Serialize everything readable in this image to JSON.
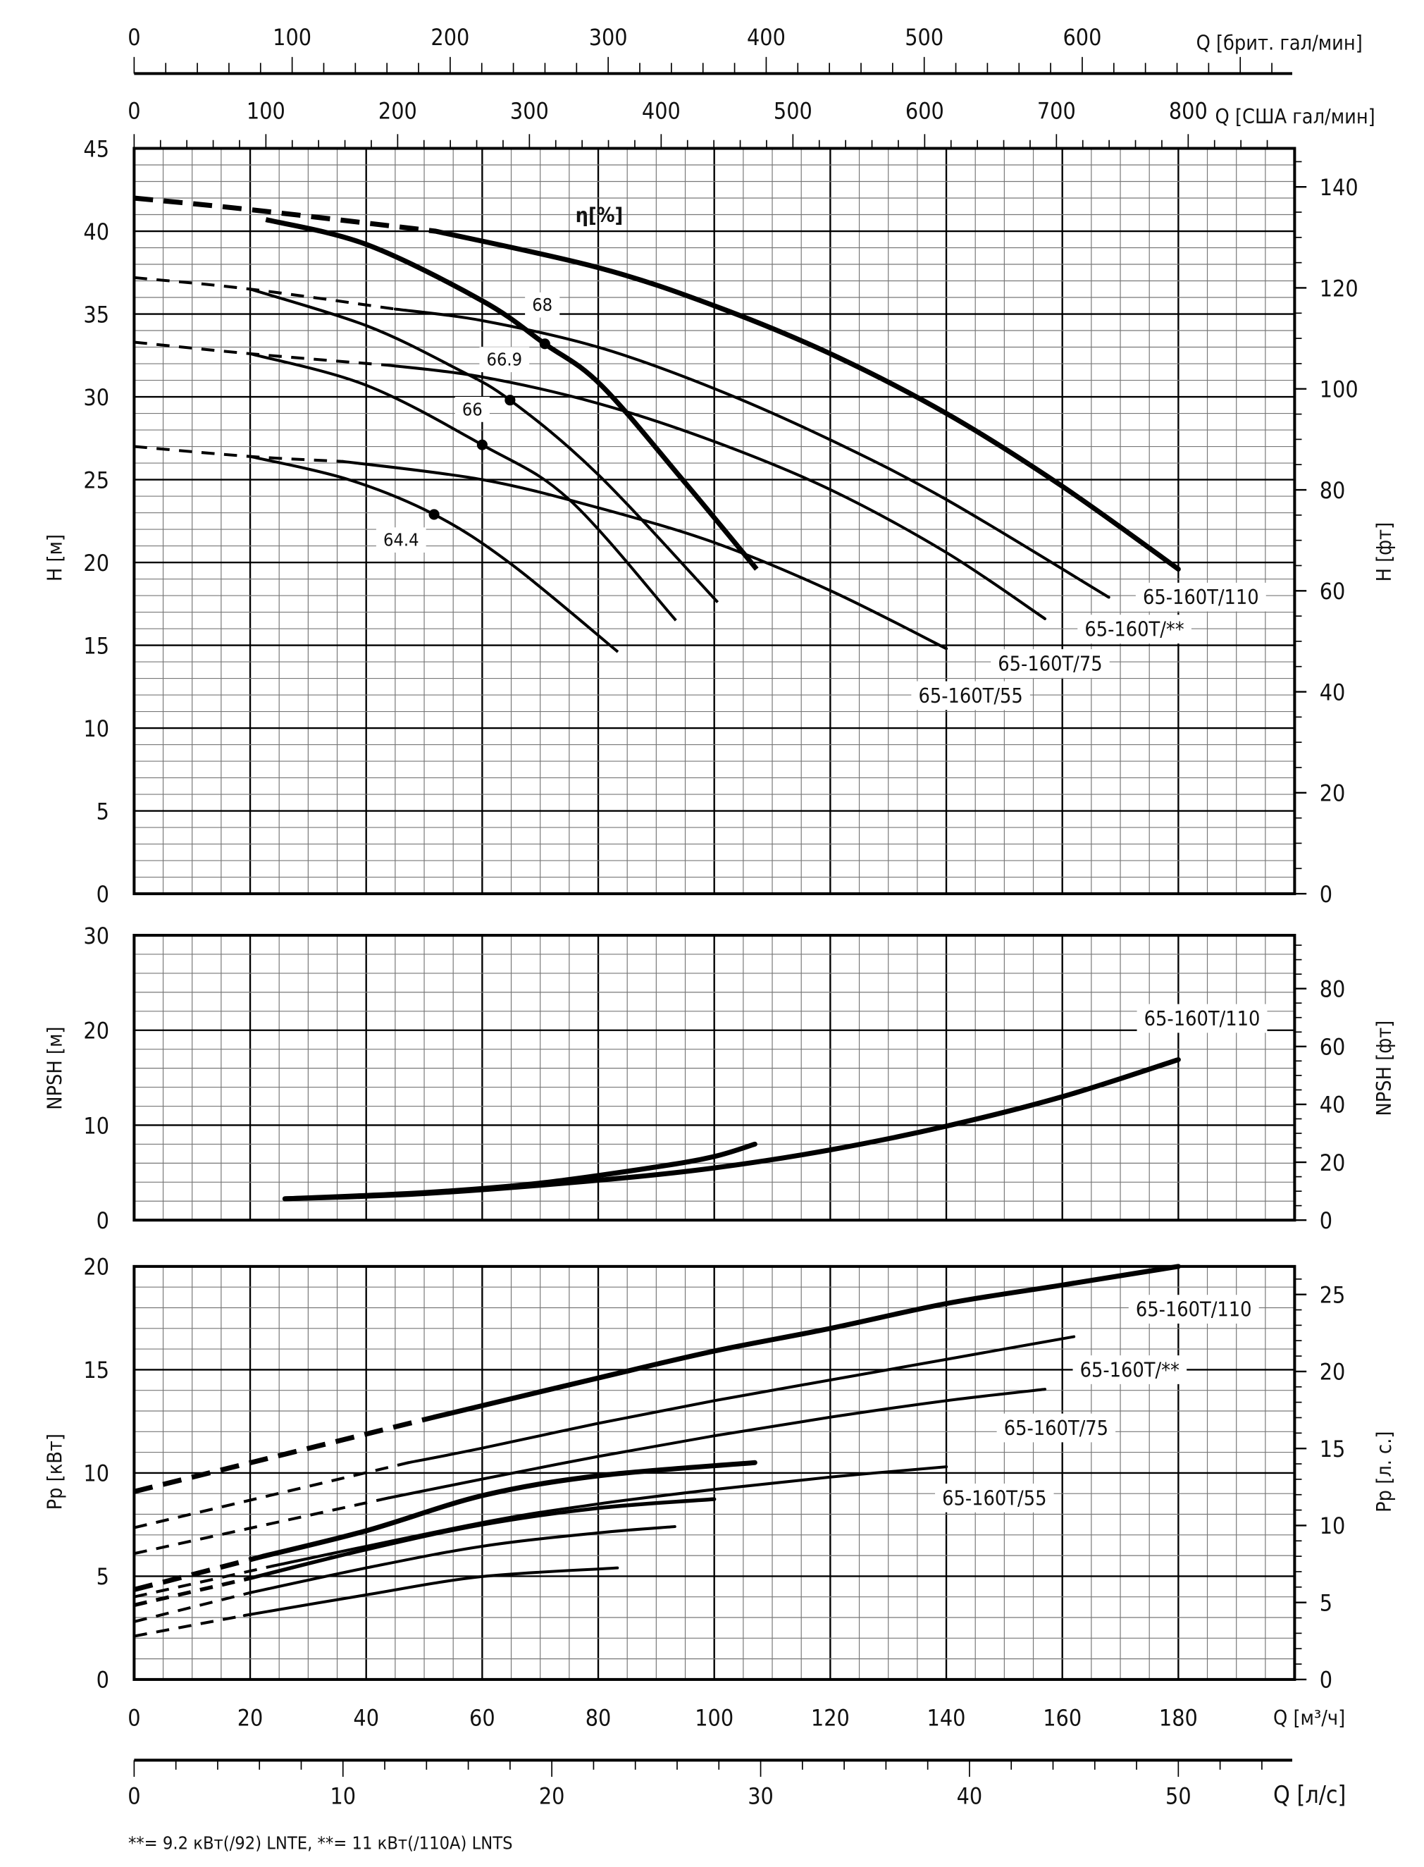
{
  "x_axes": {
    "m3h": {
      "label": "Q [м³/ч]",
      "lim": [
        0,
        200
      ],
      "ticks": [
        0,
        20,
        40,
        60,
        80,
        100,
        120,
        140,
        160,
        180
      ]
    },
    "ls": {
      "label": "Q [л/с]",
      "ticks": [
        0,
        10,
        20,
        30,
        40,
        50
      ]
    },
    "us": {
      "label": "Q [США гал/мин]",
      "ticks": [
        0,
        100,
        200,
        300,
        400,
        500,
        600,
        700,
        800
      ]
    },
    "brit": {
      "label": "Q [брит. гал/мин]",
      "ticks": [
        0,
        100,
        200,
        300,
        400,
        500,
        600
      ]
    }
  },
  "footnote": "**= 9.2  кВт(/92) LNTE,  **= 11  кВт(/110A) LNTS",
  "chart_data": [
    {
      "type": "line",
      "panel": "head",
      "ylabel": "H [м]",
      "y2label": "H [фт]",
      "ylim": [
        0,
        45
      ],
      "yticks": [
        0,
        5,
        10,
        15,
        20,
        25,
        30,
        35,
        40,
        45
      ],
      "y2ticks": [
        0,
        20,
        40,
        60,
        80,
        100,
        120,
        140
      ],
      "grid": true,
      "annotation": "η[%]",
      "series": [
        {
          "name": "65-160T/110",
          "weight": "thick",
          "dashed": [
            [
              0,
              42
            ],
            [
              20,
              41.3
            ],
            [
              52,
              40
            ]
          ],
          "solid": [
            [
              52,
              40
            ],
            [
              80,
              37.8
            ],
            [
              100,
              35.5
            ],
            [
              120,
              32.6
            ],
            [
              140,
              29
            ],
            [
              160,
              24.6
            ],
            [
              180,
              19.6
            ]
          ]
        },
        {
          "name": "65-160T/**",
          "weight": "normal",
          "dashed": [
            [
              0,
              37.2
            ],
            [
              20,
              36.5
            ],
            [
              45,
              35.3
            ]
          ],
          "solid": [
            [
              45,
              35.3
            ],
            [
              60,
              34.6
            ],
            [
              80,
              33
            ],
            [
              100,
              30.5
            ],
            [
              120,
              27.4
            ],
            [
              140,
              23.8
            ],
            [
              168,
              17.9
            ]
          ]
        },
        {
          "name": "65-160T/75",
          "weight": "normal",
          "dashed": [
            [
              0,
              33.3
            ],
            [
              20,
              32.6
            ],
            [
              44,
              31.9
            ]
          ],
          "solid": [
            [
              44,
              31.9
            ],
            [
              60,
              31.2
            ],
            [
              80,
              29.6
            ],
            [
              100,
              27.3
            ],
            [
              120,
              24.4
            ],
            [
              140,
              20.6
            ],
            [
              157,
              16.6
            ]
          ]
        },
        {
          "name": "65-160T/55",
          "weight": "normal",
          "dashed": [
            [
              0,
              27
            ],
            [
              20,
              26.4
            ],
            [
              36,
              26.1
            ]
          ],
          "solid": [
            [
              36,
              26.1
            ],
            [
              60,
              25
            ],
            [
              80,
              23.3
            ],
            [
              100,
              21.2
            ],
            [
              120,
              18.3
            ],
            [
              140,
              14.8
            ]
          ]
        }
      ],
      "efficiency": [
        {
          "label": "68",
          "weight": "thick",
          "peak": [
            70.8,
            33.2
          ],
          "points": [
            [
              22.7,
              40.7
            ],
            [
              40,
              39.2
            ],
            [
              60,
              35.8
            ],
            [
              70.8,
              33.2
            ],
            [
              80.5,
              30.7
            ],
            [
              95,
              24.8
            ],
            [
              107.3,
              19.6
            ]
          ]
        },
        {
          "label": "66.9",
          "weight": "normal",
          "peak": [
            64.8,
            29.8
          ],
          "points": [
            [
              20,
              36.5
            ],
            [
              40,
              34.3
            ],
            [
              55,
              31.8
            ],
            [
              64.8,
              29.8
            ],
            [
              80,
              25.3
            ],
            [
              100.6,
              17.6
            ]
          ]
        },
        {
          "label": "66",
          "weight": "normal",
          "peak": [
            60,
            27.1
          ],
          "points": [
            [
              20,
              32.6
            ],
            [
              40,
              30.7
            ],
            [
              60,
              27.1
            ],
            [
              75,
              23.8
            ],
            [
              93.4,
              16.5
            ]
          ]
        },
        {
          "label": "64.4",
          "weight": "normal",
          "peak": [
            51.7,
            22.9
          ],
          "points": [
            [
              20,
              26.4
            ],
            [
              37,
              25
            ],
            [
              51.7,
              22.9
            ],
            [
              65,
              19.9
            ],
            [
              83.4,
              14.6
            ]
          ]
        }
      ]
    },
    {
      "type": "line",
      "panel": "npsh",
      "ylabel": "NPSH [м]",
      "y2label": "NPSH [фт]",
      "ylim": [
        0,
        30
      ],
      "yticks": [
        0,
        10,
        20,
        30
      ],
      "y2ticks": [
        0,
        20,
        40,
        60,
        80
      ],
      "grid": true,
      "series": [
        {
          "name": "65-160T/110",
          "weight": "thick",
          "solid": [
            [
              26,
              2.25
            ],
            [
              50,
              2.8
            ],
            [
              80,
              4.2
            ],
            [
              100,
              5.5
            ],
            [
              120,
              7.4
            ],
            [
              140,
              9.9
            ],
            [
              160,
              13
            ],
            [
              180,
              16.9
            ]
          ]
        },
        {
          "weight": "thick",
          "solid": [
            [
              26,
              2.25
            ],
            [
              50,
              2.9
            ],
            [
              70,
              3.9
            ],
            [
              90,
              5.6
            ],
            [
              100,
              6.7
            ],
            [
              107,
              8
            ]
          ]
        }
      ]
    },
    {
      "type": "line",
      "panel": "power",
      "ylabel": "Pp [кВт]",
      "y2label": "Pp [л. с.]",
      "ylim": [
        0,
        20
      ],
      "yticks": [
        0,
        5,
        10,
        15,
        20
      ],
      "y2ticks": [
        0,
        5,
        10,
        15,
        20,
        25
      ],
      "grid": true,
      "series": [
        {
          "name": "65-160T/110",
          "weight": "thick",
          "dashed": [
            [
              0,
              9.1
            ],
            [
              51.7,
              12.7
            ]
          ],
          "solid": [
            [
              51.7,
              12.7
            ],
            [
              80,
              14.6
            ],
            [
              100,
              15.9
            ],
            [
              120,
              17.0
            ],
            [
              140,
              18.2
            ],
            [
              160,
              19.1
            ],
            [
              180,
              20
            ]
          ]
        },
        {
          "name": "65-160T/**",
          "weight": "normal",
          "dashed": [
            [
              0,
              7.35
            ],
            [
              47.3,
              10.5
            ]
          ],
          "solid": [
            [
              47.3,
              10.5
            ],
            [
              60,
              11.2
            ],
            [
              80,
              12.4
            ],
            [
              100,
              13.5
            ],
            [
              120,
              14.5
            ],
            [
              140,
              15.5
            ],
            [
              162,
              16.6
            ]
          ]
        },
        {
          "name": "65-160T/75",
          "weight": "normal",
          "dashed": [
            [
              0,
              6.1
            ],
            [
              44,
              8.8
            ]
          ],
          "solid": [
            [
              44,
              8.8
            ],
            [
              60,
              9.7
            ],
            [
              80,
              10.8
            ],
            [
              100,
              11.8
            ],
            [
              120,
              12.7
            ],
            [
              140,
              13.5
            ],
            [
              157,
              14.05
            ]
          ]
        },
        {
          "name": "65-160T/55",
          "weight": "normal",
          "dashed": [
            [
              0,
              4.0
            ],
            [
              24,
              5.5
            ]
          ],
          "solid": [
            [
              24,
              5.5
            ],
            [
              60,
              7.6
            ],
            [
              80,
              8.5
            ],
            [
              100,
              9.2
            ],
            [
              120,
              9.8
            ],
            [
              140,
              10.3
            ]
          ]
        },
        {
          "weight": "thick",
          "dashed": [
            [
              0,
              4.35
            ],
            [
              22,
              5.95
            ]
          ],
          "solid": [
            [
              22,
              5.95
            ],
            [
              40,
              7.2
            ],
            [
              60,
              8.9
            ],
            [
              80,
              9.86
            ],
            [
              107,
              10.5
            ]
          ]
        },
        {
          "weight": "medium",
          "dashed": [
            [
              0,
              3.6
            ],
            [
              20,
              4.9
            ]
          ],
          "solid": [
            [
              20,
              4.9
            ],
            [
              40,
              6.3
            ],
            [
              60,
              7.5
            ],
            [
              80,
              8.3
            ],
            [
              100,
              8.73
            ]
          ]
        },
        {
          "weight": "normal",
          "dashed": [
            [
              0,
              2.8
            ],
            [
              20,
              4.2
            ]
          ],
          "solid": [
            [
              20,
              4.2
            ],
            [
              40,
              5.4
            ],
            [
              60,
              6.45
            ],
            [
              80,
              7.1
            ],
            [
              93.2,
              7.4
            ]
          ]
        },
        {
          "weight": "normal",
          "dashed": [
            [
              0,
              2.1
            ],
            [
              19,
              3.1
            ]
          ],
          "solid": [
            [
              19,
              3.1
            ],
            [
              40,
              4.1
            ],
            [
              60,
              4.98
            ],
            [
              83.3,
              5.4
            ]
          ]
        }
      ]
    }
  ]
}
